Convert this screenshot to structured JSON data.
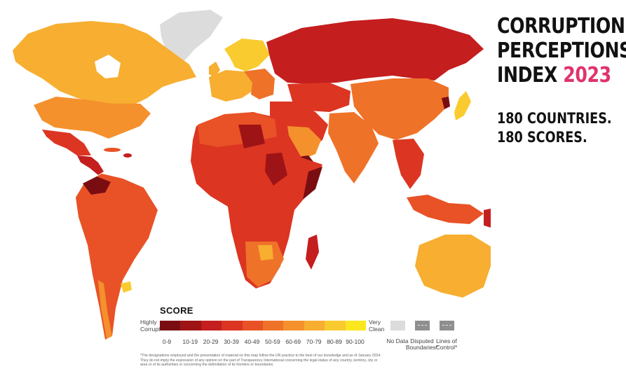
{
  "title": {
    "line1": "CORRUPTION",
    "line2": "PERCEPTIONS",
    "line3_prefix": "INDEX",
    "year": "2023"
  },
  "tagline": {
    "line1": "180 COUNTRIES.",
    "line2": "180 SCORES."
  },
  "colors": {
    "title_accent": "#e0336b",
    "no_data": "#dcdcdc",
    "disputed": "#8f8f8f",
    "ocean": "#ffffff",
    "score_scale": [
      "#7a0d12",
      "#9e1416",
      "#c41e1f",
      "#dc3522",
      "#e85226",
      "#ef7229",
      "#f4912d",
      "#f7ae31",
      "#f9cb2f",
      "#fbe61f"
    ]
  },
  "legend": {
    "title": "SCORE",
    "low_label_1": "Highly",
    "low_label_2": "Corrupt",
    "high_label_1": "Very",
    "high_label_2": "Clean",
    "ranges": [
      "0-9",
      "10-19",
      "20-29",
      "30-39",
      "40-49",
      "50-59",
      "60-69",
      "70-79",
      "80-89",
      "90-100"
    ],
    "no_data": "No Data",
    "disputed_1": "Disputed",
    "disputed_2": "Boundaries*",
    "lines_1": "Lines of",
    "lines_2": "Control*"
  },
  "disclaimer": "*The designations employed and the presentation of material on this map follow the UN practice to the best of our knowledge and as of January 2024. They do not imply the expression of any opinion on the part of Transparency International concerning the legal status of any country, territory, city or area or of its authorities or concerning the delimitation of its frontiers or boundaries."
}
